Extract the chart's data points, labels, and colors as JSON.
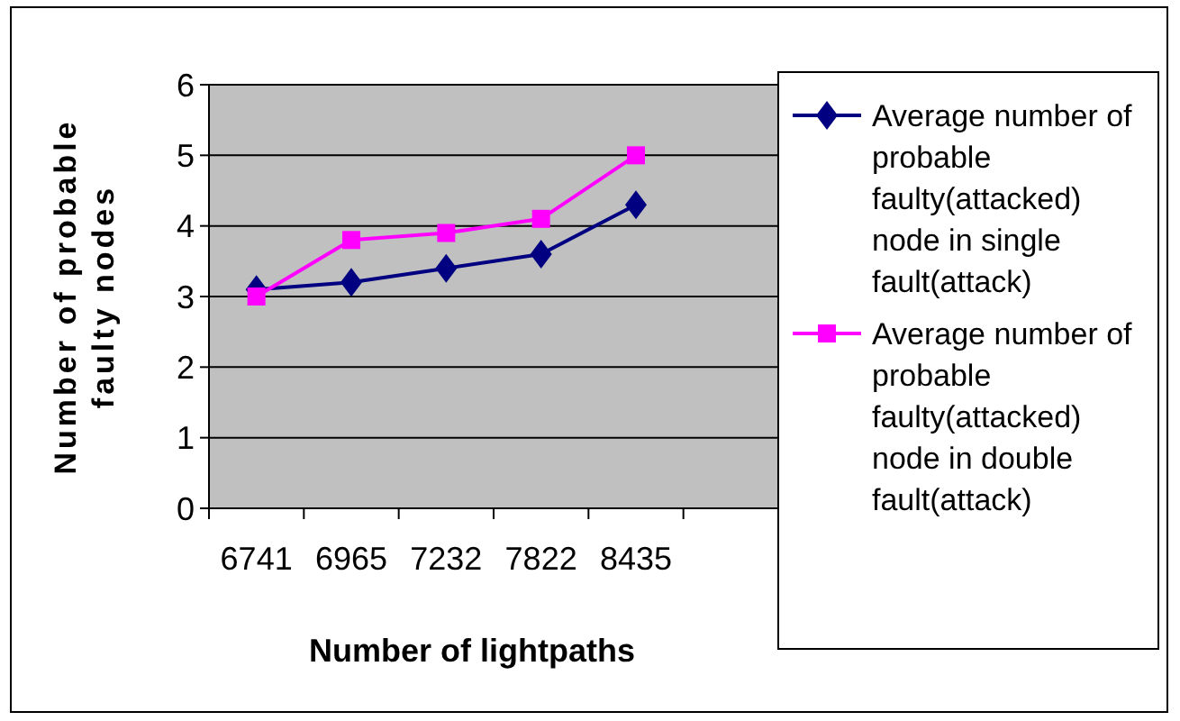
{
  "chart_data": {
    "type": "line",
    "xlabel": "Number of lightpaths",
    "ylabel": "Number of probable faulty nodes",
    "categories": [
      "6741",
      "6965",
      "7232",
      "7822",
      "8435",
      null
    ],
    "ylim": [
      0,
      6
    ],
    "yticks": [
      0,
      1,
      2,
      3,
      4,
      5,
      6
    ],
    "grid": "y",
    "legend": "right",
    "series": [
      {
        "name": "Average number of probable faulty(attacked) node in single fault(attack)",
        "color": "#000080",
        "marker": "diamond",
        "values": [
          3.1,
          3.2,
          3.4,
          3.6,
          4.3,
          null
        ]
      },
      {
        "name": "Average number of probable faulty(attacked) node in double fault(attack)",
        "color": "#ff00ff",
        "marker": "square",
        "values": [
          3.0,
          3.8,
          3.9,
          4.1,
          5.0,
          null
        ]
      }
    ]
  }
}
